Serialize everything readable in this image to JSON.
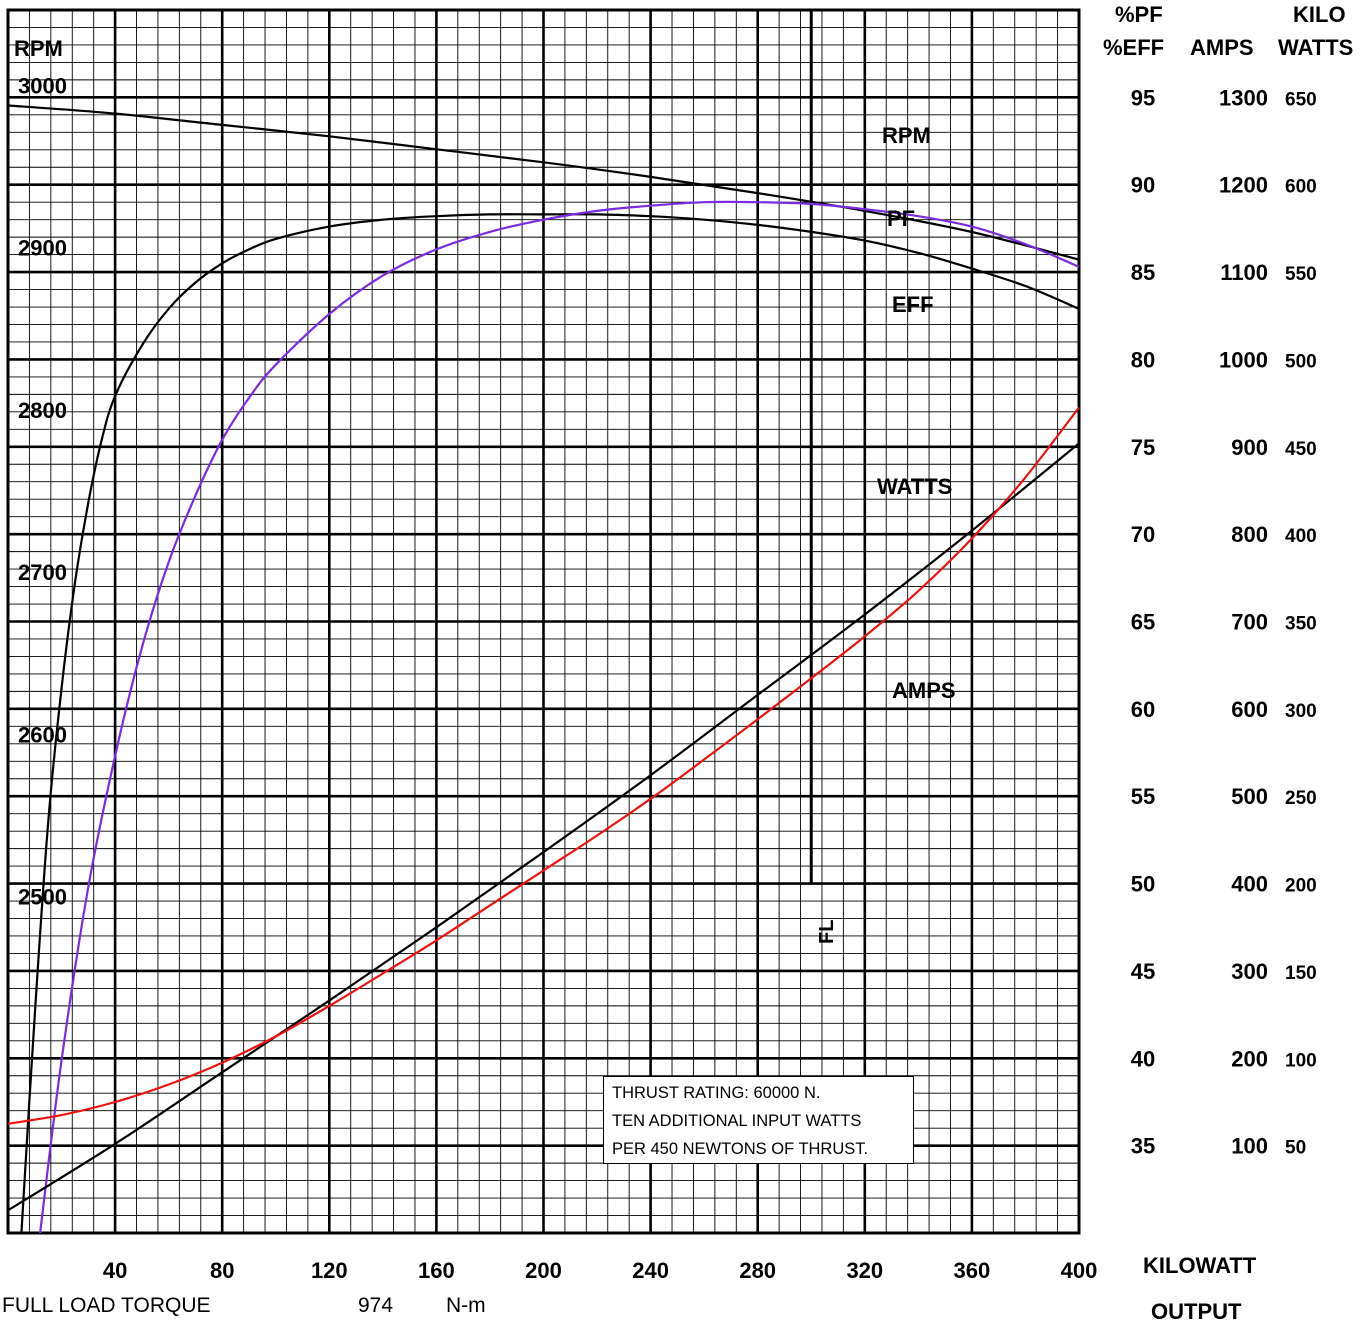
{
  "chart_data": {
    "type": "line",
    "x_axis": {
      "label_line1": "KILOWATT",
      "label_line2": "OUTPUT",
      "range": [
        0,
        400
      ],
      "ticks": [
        40,
        80,
        120,
        160,
        200,
        240,
        280,
        320,
        360,
        400
      ]
    },
    "left_axis": {
      "label": "RPM",
      "range": [
        2300,
        3000
      ],
      "ticks": [
        3000,
        2900,
        2800,
        2700,
        2600,
        2500
      ]
    },
    "right_axes": {
      "pf_eff": {
        "label_line1": "%PF",
        "label_line2": "%EFF",
        "range": [
          30,
          95
        ],
        "ticks": [
          95,
          90,
          85,
          80,
          75,
          70,
          65,
          60,
          55,
          50,
          45,
          40,
          35
        ]
      },
      "amps": {
        "label": "AMPS",
        "range": [
          0,
          1300
        ],
        "ticks": [
          1300,
          1200,
          1100,
          1000,
          900,
          800,
          700,
          600,
          500,
          400,
          300,
          200,
          100
        ]
      },
      "kilowatts": {
        "label_line1": "KILO",
        "label_line2": "WATTS",
        "range": [
          0,
          650
        ],
        "ticks": [
          650,
          600,
          550,
          500,
          450,
          400,
          350,
          300,
          250,
          200,
          150,
          100,
          50
        ]
      }
    },
    "grid": true,
    "series": [
      {
        "name": "RPM",
        "axis": "rpm",
        "color": "#000000",
        "x": [
          0,
          40,
          80,
          120,
          160,
          200,
          240,
          280,
          320,
          360,
          400
        ],
        "y": [
          2995,
          2990,
          2983,
          2976,
          2968,
          2960,
          2951,
          2941,
          2930,
          2917,
          2900
        ]
      },
      {
        "name": "PF",
        "axis": "pct",
        "color": "#000000",
        "x": [
          5,
          10,
          15,
          20,
          25,
          30,
          35,
          40,
          50,
          60,
          70,
          80,
          90,
          100,
          120,
          140,
          160,
          180,
          200,
          220,
          240,
          260,
          280,
          300,
          320,
          340,
          360,
          380,
          400
        ],
        "y": [
          30,
          42.5,
          53.5,
          61.2,
          67.2,
          71.8,
          75.4,
          77.9,
          80.8,
          82.9,
          84.4,
          85.5,
          86.3,
          86.9,
          87.6,
          88.0,
          88.2,
          88.3,
          88.3,
          88.3,
          88.2,
          88.0,
          87.7,
          87.3,
          86.8,
          86.1,
          85.2,
          84.2,
          82.9
        ]
      },
      {
        "name": "EFF",
        "axis": "pct",
        "color": "#7b2be0",
        "x": [
          12,
          20,
          30,
          40,
          50,
          60,
          70,
          80,
          90,
          100,
          120,
          140,
          160,
          180,
          200,
          220,
          240,
          260,
          280,
          300,
          320,
          340,
          360,
          380,
          400
        ],
        "y": [
          30,
          39.9,
          49.8,
          57.3,
          63.5,
          68.4,
          72.2,
          75.4,
          77.8,
          79.7,
          82.6,
          84.8,
          86.3,
          87.3,
          88.0,
          88.5,
          88.8,
          89.0,
          89.0,
          88.9,
          88.6,
          88.2,
          87.6,
          86.6,
          85.3
        ]
      },
      {
        "name": "WATTS",
        "axis": "kw",
        "color": "#000000",
        "x": [
          0,
          40,
          80,
          120,
          160,
          200,
          240,
          280,
          320,
          360,
          400
        ],
        "y": [
          13,
          51,
          92,
          133,
          175,
          218,
          262,
          308,
          354,
          402,
          452
        ]
      },
      {
        "name": "AMPS",
        "axis": "amps",
        "color": "#ee1111",
        "x": [
          0,
          20,
          40,
          60,
          80,
          100,
          120,
          140,
          160,
          180,
          200,
          220,
          240,
          260,
          280,
          300,
          320,
          340,
          360,
          380,
          400
        ],
        "y": [
          125,
          135,
          150,
          170,
          195,
          225,
          260,
          297,
          335,
          375,
          415,
          455,
          497,
          542,
          588,
          635,
          683,
          735,
          795,
          865,
          945
        ]
      }
    ],
    "curve_labels": [
      "RPM",
      "PF",
      "EFF",
      "WATTS",
      "AMPS"
    ],
    "full_load_marker": {
      "x": 300,
      "label": "FL"
    },
    "annotation": [
      "THRUST RATING:  60000 N.",
      "TEN ADDITIONAL INPUT WATTS",
      "PER 450 NEWTONS OF THRUST."
    ]
  },
  "footer": {
    "label": "FULL LOAD TORQUE",
    "value": "974",
    "unit": "N-m"
  }
}
